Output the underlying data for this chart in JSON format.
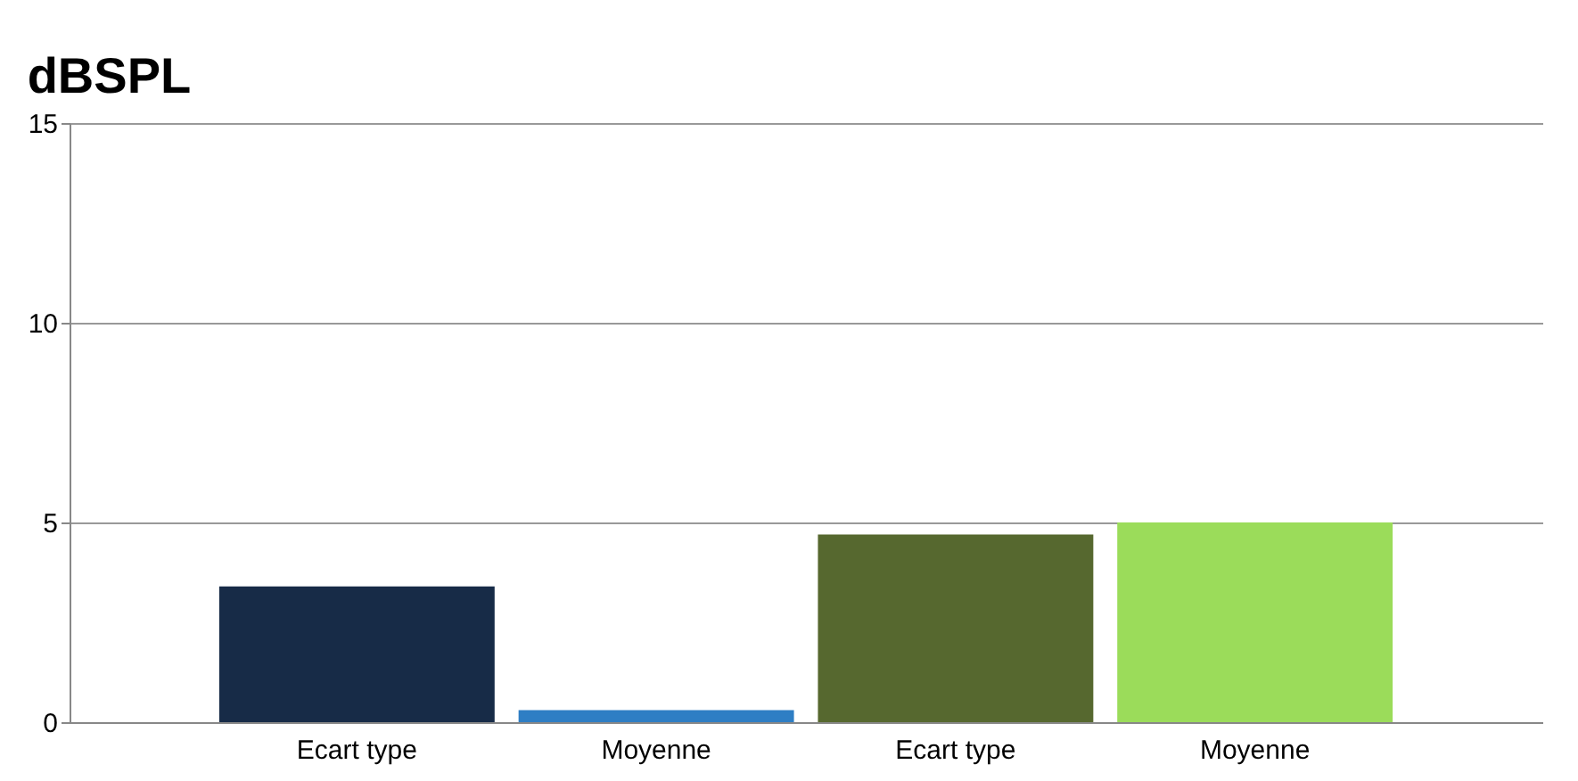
{
  "chart_data": {
    "type": "bar",
    "title": "dBSPL",
    "categories": [
      "Ecart type",
      "Moyenne",
      "Ecart type",
      "Moyenne"
    ],
    "values": [
      3.4,
      0.3,
      4.7,
      5.0
    ],
    "colors": [
      "#172b47",
      "#2e7ec4",
      "#56682f",
      "#9bdc5a"
    ],
    "ylim": [
      0,
      15
    ],
    "yticks": [
      0,
      5,
      10,
      15
    ],
    "grid": "y",
    "legend": false
  }
}
